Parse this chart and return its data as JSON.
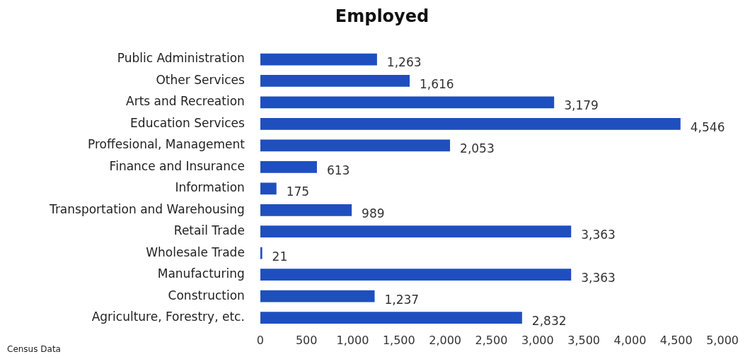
{
  "chart_data": {
    "type": "bar",
    "orientation": "horizontal",
    "title": "Employed",
    "categories": [
      "Public Administration",
      "Other Services",
      "Arts and Recreation",
      "Education Services",
      "Proffesional, Management",
      "Finance and Insurance",
      "Information",
      "Transportation and Warehousing",
      "Retail Trade",
      "Wholesale Trade",
      "Manufacturing",
      "Construction",
      "Agriculture, Forestry, etc."
    ],
    "values": [
      1263,
      1616,
      3179,
      4546,
      2053,
      613,
      175,
      989,
      3363,
      21,
      3363,
      1237,
      2832
    ],
    "value_labels": [
      "1,263",
      "1,616",
      "3,179",
      "4,546",
      "2,053",
      "613",
      "175",
      "989",
      "3,363",
      "21",
      "3,363",
      "1,237",
      "2,832"
    ],
    "color": "#1f4fbf",
    "xlim": [
      0,
      5000
    ],
    "xticks": [
      0,
      500,
      {
        "value": 1000,
        "label": "1,000"
      },
      {
        "value": 1500,
        "label": "1,500"
      },
      {
        "value": 2000,
        "label": "2,000"
      },
      {
        "value": 2500,
        "label": "2,500"
      },
      {
        "value": 3000,
        "label": "3,000"
      },
      {
        "value": 3500,
        "label": "3,500"
      },
      {
        "value": 4000,
        "label": "4,000"
      },
      {
        "value": 4500,
        "label": "4,500"
      },
      {
        "value": 5000,
        "label": "5,000"
      }
    ],
    "grid": false,
    "legend": false,
    "annotations": [
      "Census Data"
    ]
  }
}
